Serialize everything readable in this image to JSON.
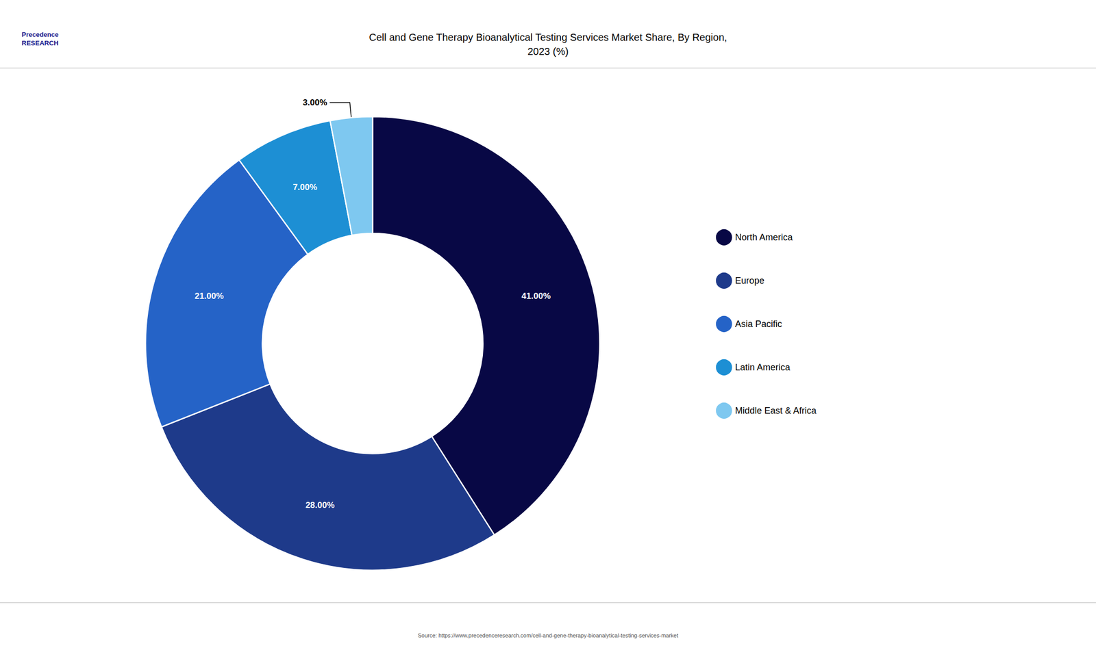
{
  "chart_data": {
    "type": "pie",
    "title": "Cell and Gene Therapy Bioanalytical Testing Services Market Share, By Region,\n2023 (%)",
    "categories": [
      "North America",
      "Europe",
      "Asia Pacific",
      "Latin America",
      "Middle East & Africa"
    ],
    "values": [
      41.0,
      28.0,
      21.0,
      7.0,
      3.0
    ],
    "value_labels": [
      "41.00%",
      "28.00%",
      "21.00%",
      "7.00%",
      "3.00%"
    ],
    "colors": [
      "#080845",
      "#1e3a8a",
      "#2563c7",
      "#1d8fd4",
      "#7ec8f0"
    ],
    "data_labels": true,
    "legend": "right",
    "annotations": [
      "Precedence\nRESEARCH",
      "Source: https://www.precedenceresearch.com/cell-and-gene-therapy-bioanalytical-testing-services-market"
    ]
  }
}
